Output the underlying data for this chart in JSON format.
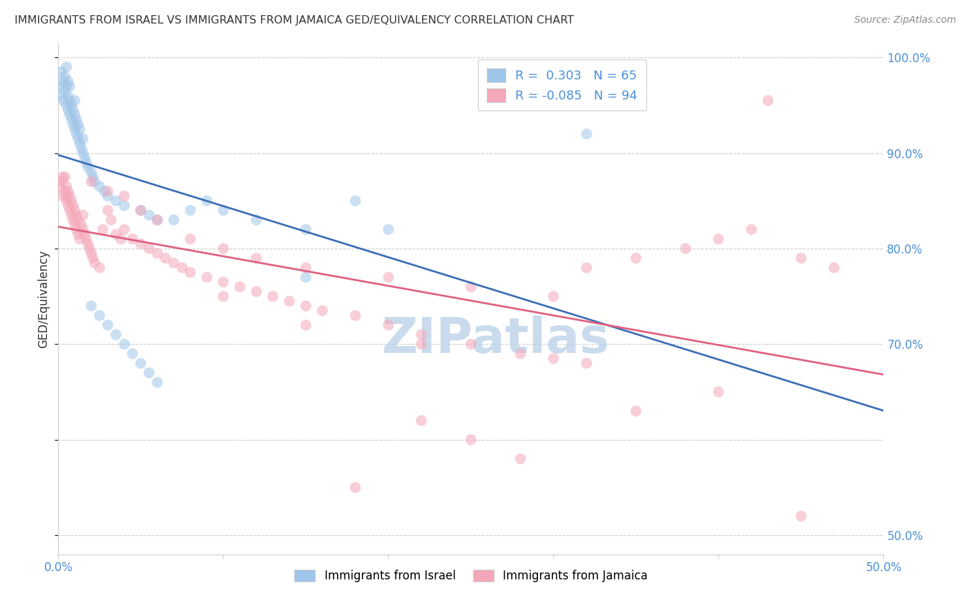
{
  "title": "IMMIGRANTS FROM ISRAEL VS IMMIGRANTS FROM JAMAICA GED/EQUIVALENCY CORRELATION CHART",
  "source": "Source: ZipAtlas.com",
  "ylabel": "GED/Equivalency",
  "xmin": 0.0,
  "xmax": 0.5,
  "ymin": 0.48,
  "ymax": 1.015,
  "color_israel": "#9fc5e8",
  "color_jamaica": "#f4a7b9",
  "color_trendline_israel": "#3d6eb5",
  "color_trendline_jamaica": "#e06080",
  "watermark": "ZIPatlas",
  "watermark_color": "#b8d0e8",
  "label_color": "#4a90d9",
  "title_color": "#333333",
  "grid_color": "#cccccc",
  "israel_x": [
    0.001,
    0.002,
    0.002,
    0.003,
    0.003,
    0.004,
    0.004,
    0.005,
    0.005,
    0.005,
    0.006,
    0.006,
    0.006,
    0.007,
    0.007,
    0.007,
    0.008,
    0.008,
    0.009,
    0.009,
    0.01,
    0.01,
    0.01,
    0.011,
    0.011,
    0.012,
    0.012,
    0.013,
    0.013,
    0.014,
    0.015,
    0.015,
    0.016,
    0.017,
    0.018,
    0.02,
    0.021,
    0.022,
    0.025,
    0.028,
    0.03,
    0.035,
    0.04,
    0.05,
    0.055,
    0.06,
    0.07,
    0.08,
    0.09,
    0.1,
    0.12,
    0.15,
    0.18,
    0.02,
    0.025,
    0.03,
    0.035,
    0.04,
    0.045,
    0.05,
    0.055,
    0.06,
    0.15,
    0.2,
    0.32
  ],
  "israel_y": [
    0.97,
    0.96,
    0.985,
    0.955,
    0.975,
    0.965,
    0.98,
    0.95,
    0.97,
    0.99,
    0.945,
    0.96,
    0.975,
    0.94,
    0.955,
    0.97,
    0.935,
    0.95,
    0.93,
    0.945,
    0.925,
    0.94,
    0.955,
    0.92,
    0.935,
    0.915,
    0.93,
    0.91,
    0.925,
    0.905,
    0.9,
    0.915,
    0.895,
    0.89,
    0.885,
    0.88,
    0.875,
    0.87,
    0.865,
    0.86,
    0.855,
    0.85,
    0.845,
    0.84,
    0.835,
    0.83,
    0.83,
    0.84,
    0.85,
    0.84,
    0.83,
    0.82,
    0.85,
    0.74,
    0.73,
    0.72,
    0.71,
    0.7,
    0.69,
    0.68,
    0.67,
    0.66,
    0.77,
    0.82,
    0.92
  ],
  "jamaica_x": [
    0.001,
    0.002,
    0.003,
    0.003,
    0.004,
    0.004,
    0.005,
    0.005,
    0.005,
    0.006,
    0.006,
    0.007,
    0.007,
    0.008,
    0.008,
    0.009,
    0.009,
    0.01,
    0.01,
    0.011,
    0.011,
    0.012,
    0.012,
    0.013,
    0.014,
    0.015,
    0.015,
    0.016,
    0.017,
    0.018,
    0.019,
    0.02,
    0.021,
    0.022,
    0.025,
    0.027,
    0.03,
    0.032,
    0.035,
    0.038,
    0.04,
    0.045,
    0.05,
    0.055,
    0.06,
    0.065,
    0.07,
    0.075,
    0.08,
    0.09,
    0.1,
    0.11,
    0.12,
    0.13,
    0.14,
    0.15,
    0.16,
    0.18,
    0.2,
    0.22,
    0.25,
    0.28,
    0.3,
    0.32,
    0.35,
    0.38,
    0.4,
    0.42,
    0.45,
    0.47,
    0.43,
    0.02,
    0.03,
    0.04,
    0.05,
    0.06,
    0.08,
    0.1,
    0.12,
    0.15,
    0.2,
    0.25,
    0.3,
    0.25,
    0.18,
    0.22,
    0.28,
    0.35,
    0.4,
    0.45,
    0.1,
    0.15,
    0.22,
    0.32
  ],
  "jamaica_y": [
    0.865,
    0.87,
    0.855,
    0.875,
    0.86,
    0.875,
    0.85,
    0.865,
    0.855,
    0.845,
    0.86,
    0.84,
    0.855,
    0.835,
    0.85,
    0.83,
    0.845,
    0.825,
    0.84,
    0.82,
    0.835,
    0.815,
    0.83,
    0.81,
    0.825,
    0.82,
    0.835,
    0.815,
    0.81,
    0.805,
    0.8,
    0.795,
    0.79,
    0.785,
    0.78,
    0.82,
    0.84,
    0.83,
    0.815,
    0.81,
    0.82,
    0.81,
    0.805,
    0.8,
    0.795,
    0.79,
    0.785,
    0.78,
    0.775,
    0.77,
    0.765,
    0.76,
    0.755,
    0.75,
    0.745,
    0.74,
    0.735,
    0.73,
    0.72,
    0.71,
    0.7,
    0.69,
    0.685,
    0.78,
    0.79,
    0.8,
    0.81,
    0.82,
    0.79,
    0.78,
    0.955,
    0.87,
    0.86,
    0.855,
    0.84,
    0.83,
    0.81,
    0.8,
    0.79,
    0.78,
    0.77,
    0.76,
    0.75,
    0.6,
    0.55,
    0.62,
    0.58,
    0.63,
    0.65,
    0.52,
    0.75,
    0.72,
    0.7,
    0.68
  ]
}
